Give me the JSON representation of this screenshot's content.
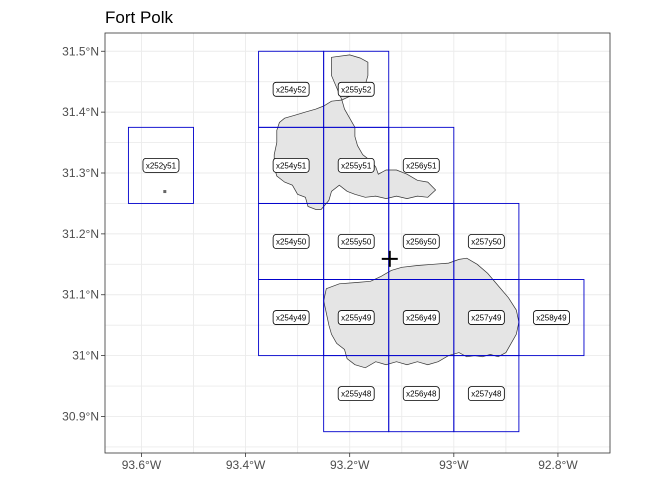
{
  "chart_data": {
    "type": "map",
    "title": "Fort Polk",
    "xlabel": "",
    "ylabel": "",
    "xlim": [
      -93.67,
      -92.7
    ],
    "ylim": [
      30.84,
      31.53
    ],
    "grid": true,
    "x_ticks": [
      {
        "value": -93.6,
        "label": "93.6°W"
      },
      {
        "value": -93.4,
        "label": "93.4°W"
      },
      {
        "value": -93.2,
        "label": "93.2°W"
      },
      {
        "value": -93.0,
        "label": "93°W"
      },
      {
        "value": -92.8,
        "label": "92.8°W"
      }
    ],
    "y_ticks": [
      {
        "value": 30.9,
        "label": "30.9°N"
      },
      {
        "value": 31.0,
        "label": "31°N"
      },
      {
        "value": 31.1,
        "label": "31.1°N"
      },
      {
        "value": 31.2,
        "label": "31.2°N"
      },
      {
        "value": 31.3,
        "label": "31.3°N"
      },
      {
        "value": 31.4,
        "label": "31.4°N"
      },
      {
        "value": 31.5,
        "label": "31.5°N"
      }
    ],
    "tile_color": "#0000cc",
    "boundary_fill": "#e5e5e5",
    "boundary_stroke": "#333333",
    "tiles": [
      {
        "label": "x252y51",
        "xmin": -93.625,
        "xmax": -93.5,
        "ymin": 31.25,
        "ymax": 31.375
      },
      {
        "label": "x254y52",
        "xmin": -93.375,
        "xmax": -93.25,
        "ymin": 31.375,
        "ymax": 31.5
      },
      {
        "label": "x255y52",
        "xmin": -93.25,
        "xmax": -93.125,
        "ymin": 31.375,
        "ymax": 31.5
      },
      {
        "label": "x254y51",
        "xmin": -93.375,
        "xmax": -93.25,
        "ymin": 31.25,
        "ymax": 31.375
      },
      {
        "label": "x255y51",
        "xmin": -93.25,
        "xmax": -93.125,
        "ymin": 31.25,
        "ymax": 31.375
      },
      {
        "label": "x256y51",
        "xmin": -93.125,
        "xmax": -93.0,
        "ymin": 31.25,
        "ymax": 31.375
      },
      {
        "label": "x254y50",
        "xmin": -93.375,
        "xmax": -93.25,
        "ymin": 31.125,
        "ymax": 31.25
      },
      {
        "label": "x255y50",
        "xmin": -93.25,
        "xmax": -93.125,
        "ymin": 31.125,
        "ymax": 31.25
      },
      {
        "label": "x256y50",
        "xmin": -93.125,
        "xmax": -93.0,
        "ymin": 31.125,
        "ymax": 31.25
      },
      {
        "label": "x257y50",
        "xmin": -93.0,
        "xmax": -92.875,
        "ymin": 31.125,
        "ymax": 31.25
      },
      {
        "label": "x254y49",
        "xmin": -93.375,
        "xmax": -93.25,
        "ymin": 31.0,
        "ymax": 31.125
      },
      {
        "label": "x255y49",
        "xmin": -93.25,
        "xmax": -93.125,
        "ymin": 31.0,
        "ymax": 31.125
      },
      {
        "label": "x256y49",
        "xmin": -93.125,
        "xmax": -93.0,
        "ymin": 31.0,
        "ymax": 31.125
      },
      {
        "label": "x257y49",
        "xmin": -93.0,
        "xmax": -92.875,
        "ymin": 31.0,
        "ymax": 31.125
      },
      {
        "label": "x258y49",
        "xmin": -92.875,
        "xmax": -92.75,
        "ymin": 31.0,
        "ymax": 31.125
      },
      {
        "label": "x255y48",
        "xmin": -93.25,
        "xmax": -93.125,
        "ymin": 30.875,
        "ymax": 31.0
      },
      {
        "label": "x256y48",
        "xmin": -93.125,
        "xmax": -93.0,
        "ymin": 30.875,
        "ymax": 31.0
      },
      {
        "label": "x257y48",
        "xmin": -93.0,
        "xmax": -92.875,
        "ymin": 30.875,
        "ymax": 31.0
      }
    ],
    "centroid": {
      "lon": -93.123,
      "lat": 31.159
    },
    "boundary_north": [
      [
        -93.235,
        31.49
      ],
      [
        -93.2,
        31.494
      ],
      [
        -93.18,
        31.489
      ],
      [
        -93.165,
        31.482
      ],
      [
        -93.165,
        31.46
      ],
      [
        -93.17,
        31.445
      ],
      [
        -93.185,
        31.438
      ],
      [
        -93.195,
        31.428
      ],
      [
        -93.215,
        31.42
      ],
      [
        -93.235,
        31.418
      ],
      [
        -93.25,
        31.41
      ],
      [
        -93.265,
        31.405
      ],
      [
        -93.285,
        31.4
      ],
      [
        -93.305,
        31.395
      ],
      [
        -93.325,
        31.39
      ],
      [
        -93.335,
        31.383
      ],
      [
        -93.34,
        31.37
      ],
      [
        -93.34,
        31.35
      ],
      [
        -93.345,
        31.33
      ],
      [
        -93.345,
        31.31
      ],
      [
        -93.34,
        31.295
      ],
      [
        -93.325,
        31.285
      ],
      [
        -93.31,
        31.28
      ],
      [
        -93.3,
        31.265
      ],
      [
        -93.285,
        31.26
      ],
      [
        -93.28,
        31.245
      ],
      [
        -93.265,
        31.24
      ],
      [
        -93.255,
        31.24
      ],
      [
        -93.24,
        31.255
      ],
      [
        -93.235,
        31.27
      ],
      [
        -93.22,
        31.28
      ],
      [
        -93.205,
        31.27
      ],
      [
        -93.19,
        31.265
      ],
      [
        -93.17,
        31.26
      ],
      [
        -93.15,
        31.262
      ],
      [
        -93.13,
        31.258
      ],
      [
        -93.11,
        31.262
      ],
      [
        -93.09,
        31.258
      ],
      [
        -93.07,
        31.262
      ],
      [
        -93.05,
        31.26
      ],
      [
        -93.035,
        31.272
      ],
      [
        -93.05,
        31.285
      ],
      [
        -93.07,
        31.288
      ],
      [
        -93.09,
        31.298
      ],
      [
        -93.11,
        31.305
      ],
      [
        -93.13,
        31.305
      ],
      [
        -93.145,
        31.298
      ],
      [
        -93.15,
        31.31
      ],
      [
        -93.16,
        31.32
      ],
      [
        -93.175,
        31.33
      ],
      [
        -93.185,
        31.345
      ],
      [
        -93.19,
        31.36
      ],
      [
        -93.19,
        31.375
      ],
      [
        -93.2,
        31.39
      ],
      [
        -93.21,
        31.405
      ],
      [
        -93.215,
        31.42
      ],
      [
        -93.225,
        31.44
      ],
      [
        -93.235,
        31.46
      ],
      [
        -93.235,
        31.49
      ]
    ],
    "boundary_south": [
      [
        -93.245,
        31.11
      ],
      [
        -93.22,
        31.118
      ],
      [
        -93.19,
        31.12
      ],
      [
        -93.16,
        31.122
      ],
      [
        -93.14,
        31.13
      ],
      [
        -93.12,
        31.14
      ],
      [
        -93.1,
        31.145
      ],
      [
        -93.07,
        31.148
      ],
      [
        -93.04,
        31.15
      ],
      [
        -93.01,
        31.152
      ],
      [
        -92.99,
        31.158
      ],
      [
        -92.975,
        31.16
      ],
      [
        -92.955,
        31.15
      ],
      [
        -92.935,
        31.135
      ],
      [
        -92.915,
        31.115
      ],
      [
        -92.895,
        31.095
      ],
      [
        -92.88,
        31.075
      ],
      [
        -92.875,
        31.055
      ],
      [
        -92.88,
        31.035
      ],
      [
        -92.89,
        31.02
      ],
      [
        -92.9,
        31.005
      ],
      [
        -92.915,
        30.998
      ],
      [
        -92.93,
        31.002
      ],
      [
        -92.945,
        30.998
      ],
      [
        -92.96,
        31.0
      ],
      [
        -92.975,
        30.998
      ],
      [
        -92.99,
        31.005
      ],
      [
        -93.01,
        31.0
      ],
      [
        -93.03,
        30.99
      ],
      [
        -93.05,
        30.985
      ],
      [
        -93.07,
        30.99
      ],
      [
        -93.09,
        30.985
      ],
      [
        -93.11,
        30.99
      ],
      [
        -93.13,
        30.985
      ],
      [
        -93.15,
        30.99
      ],
      [
        -93.17,
        30.98
      ],
      [
        -93.19,
        30.985
      ],
      [
        -93.205,
        30.995
      ],
      [
        -93.21,
        31.01
      ],
      [
        -93.225,
        31.02
      ],
      [
        -93.235,
        31.035
      ],
      [
        -93.24,
        31.05
      ],
      [
        -93.245,
        31.07
      ],
      [
        -93.25,
        31.09
      ],
      [
        -93.245,
        31.11
      ]
    ]
  }
}
